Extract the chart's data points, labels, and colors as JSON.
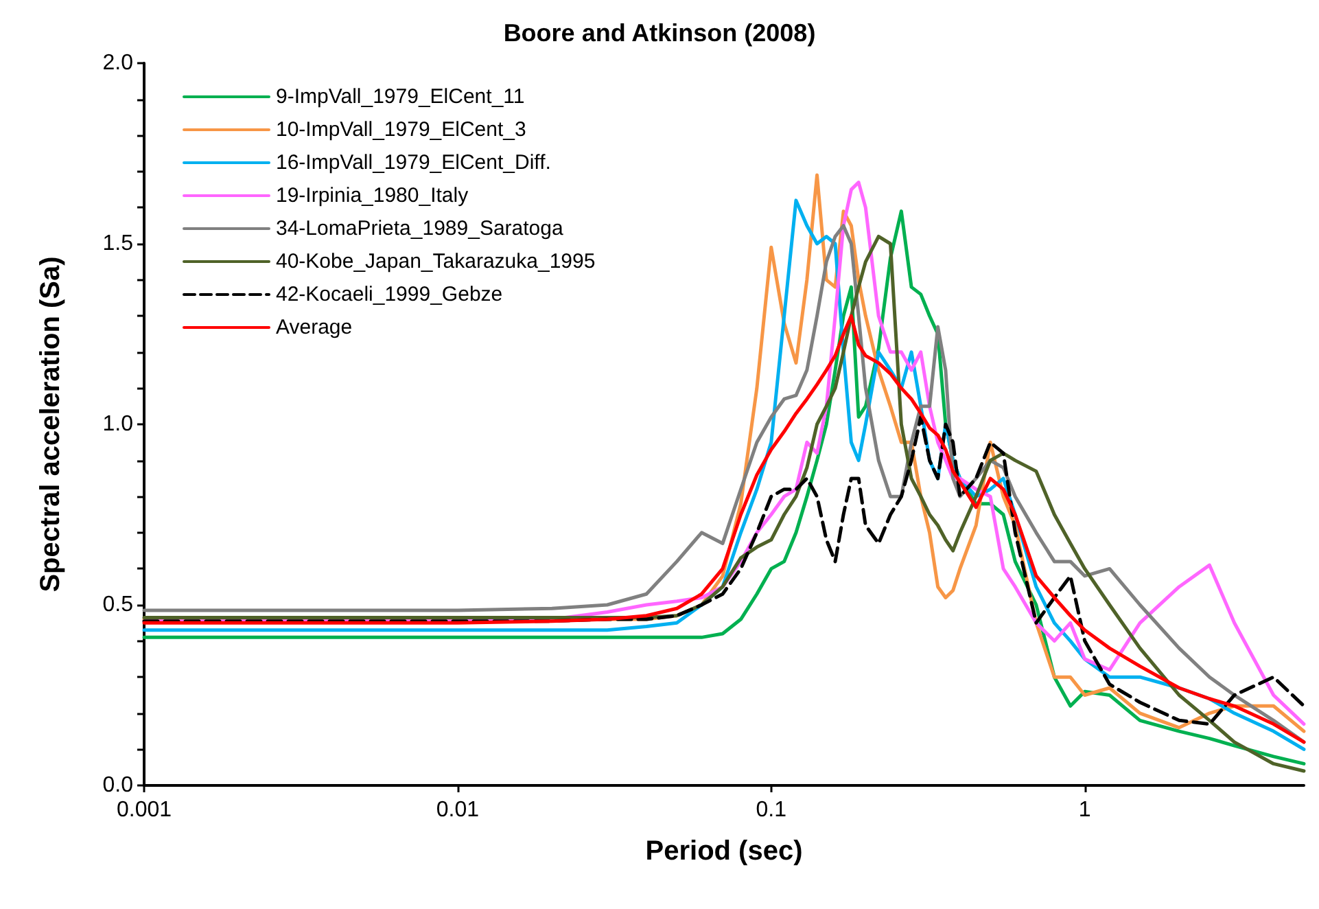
{
  "chart_data": {
    "type": "line",
    "title": "Boore and Atkinson (2008)",
    "xlabel": "Period (sec)",
    "ylabel": "Spectral acceleration (Sa)",
    "log": "x",
    "legend": "top left",
    "grid": false,
    "marker": "none",
    "xlim": [
      0.001,
      5
    ],
    "xticks": [
      0.001,
      0.01,
      0.1,
      1
    ],
    "ylim": [
      0,
      2
    ],
    "yticks": [
      {
        "value": 0,
        "label": "0.0"
      },
      {
        "value": 0.1,
        "label": null
      },
      {
        "value": 0.2,
        "label": null
      },
      {
        "value": 0.3,
        "label": null
      },
      {
        "value": 0.4,
        "label": null
      },
      {
        "value": 0.5,
        "label": "0.5"
      },
      {
        "value": 0.6,
        "label": null
      },
      {
        "value": 0.7,
        "label": null
      },
      {
        "value": 0.8,
        "label": null
      },
      {
        "value": 0.9,
        "label": null
      },
      {
        "value": 1,
        "label": "1.0"
      },
      {
        "value": 1.1,
        "label": null
      },
      {
        "value": 1.2,
        "label": null
      },
      {
        "value": 1.3,
        "label": null
      },
      {
        "value": 1.4,
        "label": null
      },
      {
        "value": 1.5,
        "label": "1.5"
      },
      {
        "value": 1.6,
        "label": null
      },
      {
        "value": 1.7,
        "label": null
      },
      {
        "value": 1.8,
        "label": null
      },
      {
        "value": 1.9,
        "label": null
      },
      {
        "value": 2,
        "label": "2.0"
      }
    ],
    "x": [
      0.001,
      0.01,
      0.02,
      0.03,
      0.04,
      0.05,
      0.06,
      0.07,
      0.08,
      0.09,
      0.1,
      0.11,
      0.12,
      0.13,
      0.14,
      0.15,
      0.16,
      0.17,
      0.18,
      0.19,
      0.2,
      0.22,
      0.24,
      0.26,
      0.28,
      0.3,
      0.32,
      0.34,
      0.36,
      0.38,
      0.4,
      0.45,
      0.5,
      0.55,
      0.6,
      0.7,
      0.8,
      0.9,
      1,
      1.2,
      1.5,
      2,
      2.5,
      3,
      4,
      5
    ],
    "series": [
      {
        "name": "9-ImpVall_1979_ElCent_11",
        "color": "#00b050",
        "values": [
          0.41,
          0.41,
          0.41,
          0.41,
          0.41,
          0.41,
          0.41,
          0.42,
          0.46,
          0.53,
          0.6,
          0.62,
          0.7,
          0.8,
          0.9,
          1.0,
          1.15,
          1.3,
          1.38,
          1.02,
          1.05,
          1.21,
          1.46,
          1.59,
          1.38,
          1.36,
          1.3,
          1.25,
          1.0,
          0.9,
          0.85,
          0.78,
          0.78,
          0.75,
          0.62,
          0.5,
          0.3,
          0.22,
          0.26,
          0.25,
          0.18,
          0.15,
          0.13,
          0.11,
          0.08,
          0.06
        ]
      },
      {
        "name": "10-ImpVall_1979_ElCent_3",
        "color": "#f79646",
        "values": [
          0.46,
          0.46,
          0.46,
          0.46,
          0.46,
          0.47,
          0.5,
          0.58,
          0.78,
          1.1,
          1.49,
          1.28,
          1.17,
          1.4,
          1.69,
          1.4,
          1.38,
          1.59,
          1.55,
          1.4,
          1.3,
          1.15,
          1.05,
          0.95,
          0.95,
          0.8,
          0.7,
          0.55,
          0.52,
          0.54,
          0.6,
          0.72,
          0.95,
          0.8,
          0.72,
          0.45,
          0.3,
          0.3,
          0.25,
          0.27,
          0.2,
          0.16,
          0.2,
          0.22,
          0.22,
          0.15
        ]
      },
      {
        "name": "16-ImpVall_1979_ElCent_Diff.",
        "color": "#00b0f0",
        "values": [
          0.43,
          0.43,
          0.43,
          0.43,
          0.44,
          0.45,
          0.5,
          0.55,
          0.7,
          0.82,
          0.95,
          1.3,
          1.62,
          1.55,
          1.5,
          1.52,
          1.5,
          1.2,
          0.95,
          0.9,
          1.0,
          1.2,
          1.15,
          1.1,
          1.2,
          1.05,
          0.9,
          0.85,
          1.0,
          0.9,
          0.85,
          0.8,
          0.82,
          0.85,
          0.75,
          0.55,
          0.45,
          0.4,
          0.35,
          0.3,
          0.3,
          0.27,
          0.24,
          0.2,
          0.15,
          0.1
        ]
      },
      {
        "name": "19-Irpinia_1980_Italy",
        "color": "#ff66ff",
        "values": [
          0.455,
          0.455,
          0.46,
          0.48,
          0.5,
          0.51,
          0.52,
          0.55,
          0.62,
          0.7,
          0.75,
          0.8,
          0.82,
          0.95,
          0.92,
          1.05,
          1.3,
          1.55,
          1.65,
          1.67,
          1.6,
          1.3,
          1.2,
          1.2,
          1.15,
          1.2,
          1.05,
          0.95,
          0.9,
          0.85,
          0.85,
          0.82,
          0.8,
          0.6,
          0.55,
          0.45,
          0.4,
          0.45,
          0.35,
          0.32,
          0.45,
          0.55,
          0.61,
          0.45,
          0.25,
          0.17
        ]
      },
      {
        "name": "34-LomaPrieta_1989_Saratoga",
        "color": "#808080",
        "values": [
          0.485,
          0.485,
          0.49,
          0.5,
          0.53,
          0.62,
          0.7,
          0.67,
          0.82,
          0.95,
          1.02,
          1.07,
          1.08,
          1.15,
          1.3,
          1.45,
          1.52,
          1.55,
          1.5,
          1.3,
          1.1,
          0.9,
          0.8,
          0.8,
          0.95,
          1.05,
          1.05,
          1.27,
          1.15,
          0.85,
          0.8,
          0.85,
          0.9,
          0.88,
          0.8,
          0.7,
          0.62,
          0.62,
          0.58,
          0.6,
          0.5,
          0.38,
          0.3,
          0.25,
          0.18,
          0.12
        ]
      },
      {
        "name": "40-Kobe_Japan_Takarazuka_1995",
        "color": "#4f6228",
        "values": [
          0.465,
          0.465,
          0.465,
          0.465,
          0.465,
          0.47,
          0.5,
          0.55,
          0.63,
          0.66,
          0.68,
          0.75,
          0.8,
          0.88,
          1.0,
          1.05,
          1.1,
          1.2,
          1.3,
          1.38,
          1.45,
          1.52,
          1.5,
          1.0,
          0.85,
          0.8,
          0.75,
          0.72,
          0.68,
          0.65,
          0.7,
          0.8,
          0.9,
          0.92,
          0.9,
          0.87,
          0.75,
          0.67,
          0.6,
          0.5,
          0.38,
          0.25,
          0.18,
          0.12,
          0.06,
          0.04
        ]
      },
      {
        "name": "42-Kocaeli_1999_Gebze",
        "color": "#000000",
        "line_style": "dashed",
        "values": [
          0.455,
          0.455,
          0.455,
          0.46,
          0.46,
          0.47,
          0.5,
          0.53,
          0.6,
          0.7,
          0.8,
          0.82,
          0.82,
          0.85,
          0.8,
          0.68,
          0.62,
          0.75,
          0.85,
          0.85,
          0.72,
          0.67,
          0.75,
          0.8,
          0.9,
          1.02,
          0.9,
          0.85,
          1.0,
          0.95,
          0.8,
          0.85,
          0.95,
          0.92,
          0.7,
          0.45,
          0.52,
          0.58,
          0.4,
          0.28,
          0.23,
          0.18,
          0.17,
          0.25,
          0.3,
          0.22
        ]
      },
      {
        "name": "Average",
        "color": "#ff0000",
        "values": [
          0.45,
          0.45,
          0.455,
          0.46,
          0.47,
          0.49,
          0.53,
          0.6,
          0.75,
          0.86,
          0.93,
          0.98,
          1.03,
          1.07,
          1.11,
          1.15,
          1.19,
          1.25,
          1.3,
          1.22,
          1.19,
          1.17,
          1.14,
          1.1,
          1.07,
          1.03,
          0.99,
          0.97,
          0.93,
          0.87,
          0.84,
          0.77,
          0.85,
          0.82,
          0.75,
          0.58,
          0.52,
          0.47,
          0.43,
          0.38,
          0.33,
          0.27,
          0.24,
          0.22,
          0.17,
          0.12
        ]
      }
    ]
  }
}
